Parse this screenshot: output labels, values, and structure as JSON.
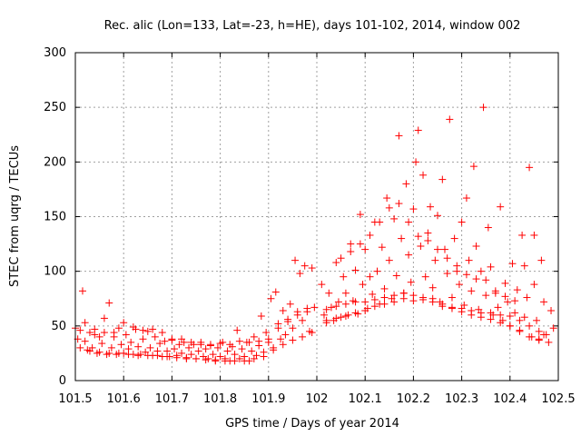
{
  "chart_data": {
    "type": "scatter",
    "title": "Rec. alic (Lon=133, Lat=-23, h=HE), days 101-102, 2014, window 002",
    "xlabel": "GPS time / Days of year 2014",
    "ylabel": "STEC from uqrg / TECUs",
    "xlim": [
      101.5,
      102.5
    ],
    "ylim": [
      0,
      300
    ],
    "xticks": [
      "101.5",
      "101.6",
      "101.7",
      "101.8",
      "101.9",
      "102",
      "102.1",
      "102.2",
      "102.3",
      "102.4",
      "102.5"
    ],
    "yticks": [
      "0",
      "50",
      "100",
      "150",
      "200",
      "250",
      "300"
    ],
    "grid": true,
    "marker": "+",
    "color": "#ff0000",
    "points": [
      [
        101.505,
        38
      ],
      [
        101.51,
        46
      ],
      [
        101.515,
        82
      ],
      [
        101.52,
        36
      ],
      [
        101.525,
        28
      ],
      [
        101.53,
        44
      ],
      [
        101.535,
        30
      ],
      [
        101.54,
        42
      ],
      [
        101.545,
        25
      ],
      [
        101.55,
        40
      ],
      [
        101.555,
        34
      ],
      [
        101.56,
        57
      ],
      [
        101.565,
        24
      ],
      [
        101.57,
        71
      ],
      [
        101.575,
        30
      ],
      [
        101.58,
        44
      ],
      [
        101.585,
        24
      ],
      [
        101.59,
        48
      ],
      [
        101.595,
        33
      ],
      [
        101.6,
        25
      ],
      [
        101.605,
        42
      ],
      [
        101.61,
        29
      ],
      [
        101.615,
        35
      ],
      [
        101.62,
        24
      ],
      [
        101.625,
        47
      ],
      [
        101.63,
        31
      ],
      [
        101.635,
        24
      ],
      [
        101.64,
        38
      ],
      [
        101.645,
        26
      ],
      [
        101.65,
        45
      ],
      [
        101.655,
        30
      ],
      [
        101.66,
        23
      ],
      [
        101.665,
        40
      ],
      [
        101.67,
        27
      ],
      [
        101.675,
        34
      ],
      [
        101.68,
        22
      ],
      [
        101.685,
        36
      ],
      [
        101.69,
        27
      ],
      [
        101.695,
        22
      ],
      [
        101.7,
        38
      ],
      [
        101.705,
        29
      ],
      [
        101.71,
        23
      ],
      [
        101.715,
        33
      ],
      [
        101.72,
        25
      ],
      [
        101.725,
        35
      ],
      [
        101.73,
        21
      ],
      [
        101.735,
        30
      ],
      [
        101.74,
        24
      ],
      [
        101.745,
        33
      ],
      [
        101.75,
        20
      ],
      [
        101.755,
        27
      ],
      [
        101.76,
        35
      ],
      [
        101.765,
        22
      ],
      [
        101.77,
        29
      ],
      [
        101.775,
        20
      ],
      [
        101.78,
        33
      ],
      [
        101.785,
        24
      ],
      [
        101.79,
        18
      ],
      [
        101.795,
        30
      ],
      [
        101.8,
        22
      ],
      [
        101.805,
        35
      ],
      [
        101.81,
        20
      ],
      [
        101.815,
        27
      ],
      [
        101.82,
        18
      ],
      [
        101.825,
        31
      ],
      [
        101.83,
        24
      ],
      [
        101.835,
        46
      ],
      [
        101.84,
        20
      ],
      [
        101.845,
        29
      ],
      [
        101.85,
        22
      ],
      [
        101.855,
        35
      ],
      [
        101.86,
        18
      ],
      [
        101.865,
        27
      ],
      [
        101.87,
        40
      ],
      [
        101.875,
        23
      ],
      [
        101.88,
        32
      ],
      [
        101.885,
        59
      ],
      [
        101.89,
        26
      ],
      [
        101.895,
        44
      ],
      [
        101.9,
        35
      ],
      [
        101.905,
        75
      ],
      [
        101.91,
        30
      ],
      [
        101.915,
        81
      ],
      [
        101.92,
        48
      ],
      [
        101.925,
        38
      ],
      [
        101.93,
        64
      ],
      [
        101.935,
        42
      ],
      [
        101.94,
        56
      ],
      [
        101.945,
        70
      ],
      [
        101.95,
        48
      ],
      [
        101.955,
        110
      ],
      [
        101.96,
        63
      ],
      [
        101.965,
        98
      ],
      [
        101.97,
        55
      ],
      [
        101.975,
        105
      ],
      [
        101.98,
        66
      ],
      [
        101.985,
        45
      ],
      [
        101.99,
        103
      ],
      [
        101.995,
        67
      ],
      [
        101.5,
        48
      ],
      [
        101.52,
        53
      ],
      [
        101.54,
        47
      ],
      [
        101.56,
        44
      ],
      [
        101.58,
        40
      ],
      [
        101.6,
        53
      ],
      [
        101.62,
        49
      ],
      [
        101.64,
        46
      ],
      [
        101.66,
        47
      ],
      [
        101.68,
        44
      ],
      [
        101.7,
        37
      ],
      [
        101.72,
        38
      ],
      [
        101.74,
        35
      ],
      [
        101.76,
        33
      ],
      [
        101.78,
        32
      ],
      [
        101.8,
        34
      ],
      [
        101.82,
        33
      ],
      [
        101.84,
        36
      ],
      [
        101.86,
        35
      ],
      [
        101.88,
        36
      ],
      [
        101.9,
        38
      ],
      [
        101.92,
        52
      ],
      [
        101.94,
        54
      ],
      [
        101.96,
        60
      ],
      [
        101.98,
        63
      ],
      [
        101.51,
        30
      ],
      [
        101.53,
        27
      ],
      [
        101.55,
        26
      ],
      [
        101.57,
        25
      ],
      [
        101.59,
        25
      ],
      [
        101.61,
        24
      ],
      [
        101.63,
        23
      ],
      [
        101.65,
        23
      ],
      [
        101.67,
        23
      ],
      [
        101.69,
        22
      ],
      [
        101.71,
        21
      ],
      [
        101.73,
        20
      ],
      [
        101.75,
        20
      ],
      [
        101.77,
        19
      ],
      [
        101.79,
        19
      ],
      [
        101.81,
        18
      ],
      [
        101.83,
        18
      ],
      [
        101.85,
        18
      ],
      [
        101.87,
        20
      ],
      [
        101.89,
        22
      ],
      [
        101.91,
        28
      ],
      [
        101.93,
        33
      ],
      [
        101.95,
        37
      ],
      [
        101.97,
        40
      ],
      [
        101.99,
        44
      ],
      [
        102.01,
        88
      ],
      [
        102.015,
        60
      ],
      [
        102.02,
        53
      ],
      [
        102.025,
        80
      ],
      [
        102.03,
        67
      ],
      [
        102.035,
        55
      ],
      [
        102.04,
        108
      ],
      [
        102.045,
        72
      ],
      [
        102.05,
        58
      ],
      [
        102.055,
        95
      ],
      [
        102.06,
        80
      ],
      [
        102.065,
        60
      ],
      [
        102.07,
        125
      ],
      [
        102.075,
        73
      ],
      [
        102.08,
        101
      ],
      [
        102.085,
        61
      ],
      [
        102.09,
        152
      ],
      [
        102.095,
        88
      ],
      [
        102.1,
        120
      ],
      [
        102.105,
        66
      ],
      [
        102.11,
        95
      ],
      [
        102.115,
        79
      ],
      [
        102.12,
        145
      ],
      [
        102.125,
        100
      ],
      [
        102.13,
        70
      ],
      [
        102.135,
        122
      ],
      [
        102.14,
        84
      ],
      [
        102.145,
        167
      ],
      [
        102.15,
        110
      ],
      [
        102.155,
        75
      ],
      [
        102.16,
        148
      ],
      [
        102.165,
        96
      ],
      [
        102.17,
        224
      ],
      [
        102.175,
        130
      ],
      [
        102.18,
        80
      ],
      [
        102.185,
        180
      ],
      [
        102.19,
        115
      ],
      [
        102.195,
        90
      ],
      [
        102.2,
        157
      ],
      [
        102.205,
        200
      ],
      [
        102.21,
        229
      ],
      [
        102.215,
        123
      ],
      [
        102.22,
        188
      ],
      [
        102.225,
        95
      ],
      [
        102.23,
        135
      ],
      [
        102.235,
        159
      ],
      [
        102.24,
        85
      ],
      [
        102.245,
        110
      ],
      [
        102.25,
        151
      ],
      [
        102.255,
        72
      ],
      [
        102.26,
        184
      ],
      [
        102.265,
        120
      ],
      [
        102.27,
        98
      ],
      [
        102.275,
        239
      ],
      [
        102.28,
        76
      ],
      [
        102.285,
        130
      ],
      [
        102.29,
        105
      ],
      [
        102.295,
        88
      ],
      [
        102.3,
        145
      ],
      [
        102.305,
        69
      ],
      [
        102.31,
        167
      ],
      [
        102.315,
        110
      ],
      [
        102.32,
        82
      ],
      [
        102.325,
        196
      ],
      [
        102.33,
        123
      ],
      [
        102.335,
        65
      ],
      [
        102.34,
        100
      ],
      [
        102.345,
        250
      ],
      [
        102.35,
        78
      ],
      [
        102.355,
        140
      ],
      [
        102.36,
        104
      ],
      [
        102.365,
        60
      ],
      [
        102.37,
        80
      ],
      [
        102.375,
        67
      ],
      [
        102.38,
        159
      ],
      [
        102.385,
        55
      ],
      [
        102.39,
        89
      ],
      [
        102.395,
        72
      ],
      [
        102.4,
        50
      ],
      [
        102.405,
        107
      ],
      [
        102.41,
        62
      ],
      [
        102.415,
        83
      ],
      [
        102.42,
        45
      ],
      [
        102.425,
        133
      ],
      [
        102.43,
        58
      ],
      [
        102.435,
        76
      ],
      [
        102.44,
        195
      ],
      [
        102.445,
        40
      ],
      [
        102.45,
        88
      ],
      [
        102.455,
        55
      ],
      [
        102.46,
        38
      ],
      [
        102.465,
        110
      ],
      [
        102.47,
        72
      ],
      [
        102.475,
        42
      ],
      [
        102.48,
        35
      ],
      [
        102.485,
        64
      ],
      [
        102.49,
        48
      ],
      [
        102.02,
        65
      ],
      [
        102.04,
        68
      ],
      [
        102.06,
        70
      ],
      [
        102.08,
        72
      ],
      [
        102.1,
        72
      ],
      [
        102.12,
        74
      ],
      [
        102.14,
        76
      ],
      [
        102.16,
        78
      ],
      [
        102.18,
        80
      ],
      [
        102.2,
        78
      ],
      [
        102.22,
        76
      ],
      [
        102.24,
        75
      ],
      [
        102.26,
        70
      ],
      [
        102.28,
        67
      ],
      [
        102.3,
        66
      ],
      [
        102.32,
        64
      ],
      [
        102.34,
        62
      ],
      [
        102.36,
        62
      ],
      [
        102.38,
        60
      ],
      [
        102.4,
        59
      ],
      [
        102.42,
        55
      ],
      [
        102.44,
        50
      ],
      [
        102.46,
        45
      ],
      [
        102.02,
        55
      ],
      [
        102.04,
        57
      ],
      [
        102.06,
        59
      ],
      [
        102.08,
        62
      ],
      [
        102.1,
        64
      ],
      [
        102.12,
        68
      ],
      [
        102.14,
        70
      ],
      [
        102.16,
        72
      ],
      [
        102.18,
        75
      ],
      [
        102.2,
        73
      ],
      [
        102.22,
        74
      ],
      [
        102.24,
        72
      ],
      [
        102.26,
        68
      ],
      [
        102.28,
        66
      ],
      [
        102.3,
        63
      ],
      [
        102.32,
        60
      ],
      [
        102.34,
        58
      ],
      [
        102.36,
        56
      ],
      [
        102.38,
        53
      ],
      [
        102.4,
        50
      ],
      [
        102.42,
        46
      ],
      [
        102.44,
        40
      ],
      [
        102.46,
        37
      ],
      [
        102.05,
        112
      ],
      [
        102.07,
        118
      ],
      [
        102.09,
        125
      ],
      [
        102.11,
        133
      ],
      [
        102.13,
        145
      ],
      [
        102.15,
        158
      ],
      [
        102.17,
        162
      ],
      [
        102.19,
        145
      ],
      [
        102.21,
        132
      ],
      [
        102.23,
        128
      ],
      [
        102.25,
        120
      ],
      [
        102.27,
        112
      ],
      [
        102.29,
        100
      ],
      [
        102.31,
        97
      ],
      [
        102.33,
        93
      ],
      [
        102.35,
        92
      ],
      [
        102.37,
        82
      ],
      [
        102.39,
        77
      ],
      [
        102.41,
        73
      ],
      [
        102.43,
        105
      ],
      [
        102.45,
        133
      ],
      [
        102.47,
        42
      ]
    ]
  }
}
